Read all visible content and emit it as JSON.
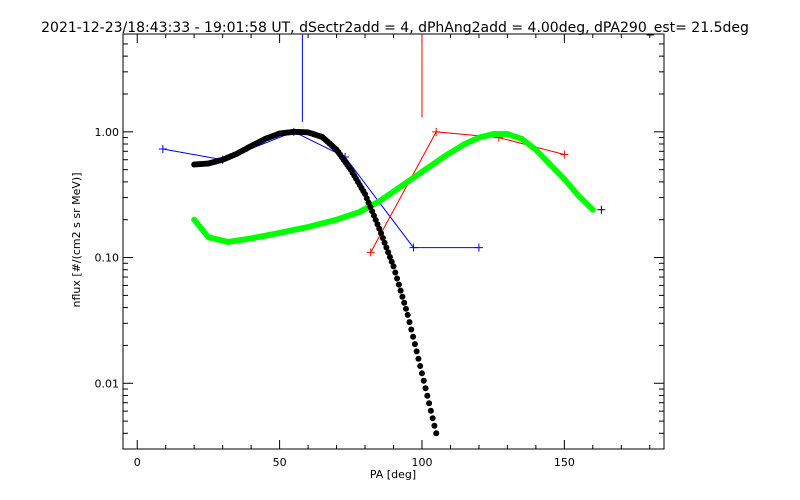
{
  "chart_data": {
    "type": "scatter",
    "title": "2021-12-23/18:43:33 - 19:01:58 UT, dSectr2add = 4, dPhAng2add = 4.00deg, dPA290_est=  21.5deg",
    "xlabel": "PA [deg]",
    "ylabel": "nflux [#/(cm2 s sr MeV)]",
    "xlim": [
      -5,
      185
    ],
    "ylim": [
      0.003,
      6
    ],
    "yscale": "log",
    "xticks": [
      0,
      50,
      100,
      150
    ],
    "xtick_labels": [
      "0",
      "50",
      "100",
      "150"
    ],
    "yticks": [
      0.01,
      0.1,
      1.0
    ],
    "ytick_labels": [
      "0.01",
      "0.10",
      "1.00"
    ],
    "grid": false,
    "series": [
      {
        "color": "#0000ff",
        "style": "line-plus",
        "x": [
          9,
          30,
          55,
          73,
          97,
          120
        ],
        "y": [
          0.73,
          0.6,
          1.0,
          0.63,
          0.12,
          0.12
        ],
        "stem": {
          "x": 58,
          "y_bottom": 1.2
        }
      },
      {
        "color": "#ff0000",
        "style": "line-plus",
        "x": [
          82,
          105,
          127,
          150
        ],
        "y": [
          0.11,
          1.0,
          0.9,
          0.66
        ],
        "stem": {
          "x": 100,
          "y_bottom": 1.3
        }
      },
      {
        "color": "#000000",
        "style": "plus",
        "x": [
          163
        ],
        "y": [
          0.24
        ]
      },
      {
        "color": "#00ff00",
        "style": "dots",
        "x": [
          20,
          25,
          32,
          40,
          50,
          60,
          70,
          78,
          85,
          92,
          100,
          108,
          115,
          120,
          125,
          130,
          135,
          140,
          145,
          150,
          155,
          160
        ],
        "y": [
          0.2,
          0.145,
          0.133,
          0.142,
          0.157,
          0.175,
          0.2,
          0.23,
          0.28,
          0.36,
          0.48,
          0.64,
          0.8,
          0.9,
          0.96,
          0.96,
          0.88,
          0.72,
          0.55,
          0.42,
          0.31,
          0.24
        ]
      },
      {
        "color": "#000000",
        "style": "dots",
        "x": [
          20,
          25,
          30,
          35,
          40,
          45,
          50,
          55,
          60,
          65,
          70,
          75,
          80,
          85,
          90,
          95,
          100,
          105
        ],
        "y": [
          0.55,
          0.56,
          0.6,
          0.67,
          0.77,
          0.88,
          0.97,
          1.0,
          0.99,
          0.91,
          0.72,
          0.5,
          0.32,
          0.17,
          0.085,
          0.035,
          0.012,
          0.004
        ]
      }
    ]
  }
}
